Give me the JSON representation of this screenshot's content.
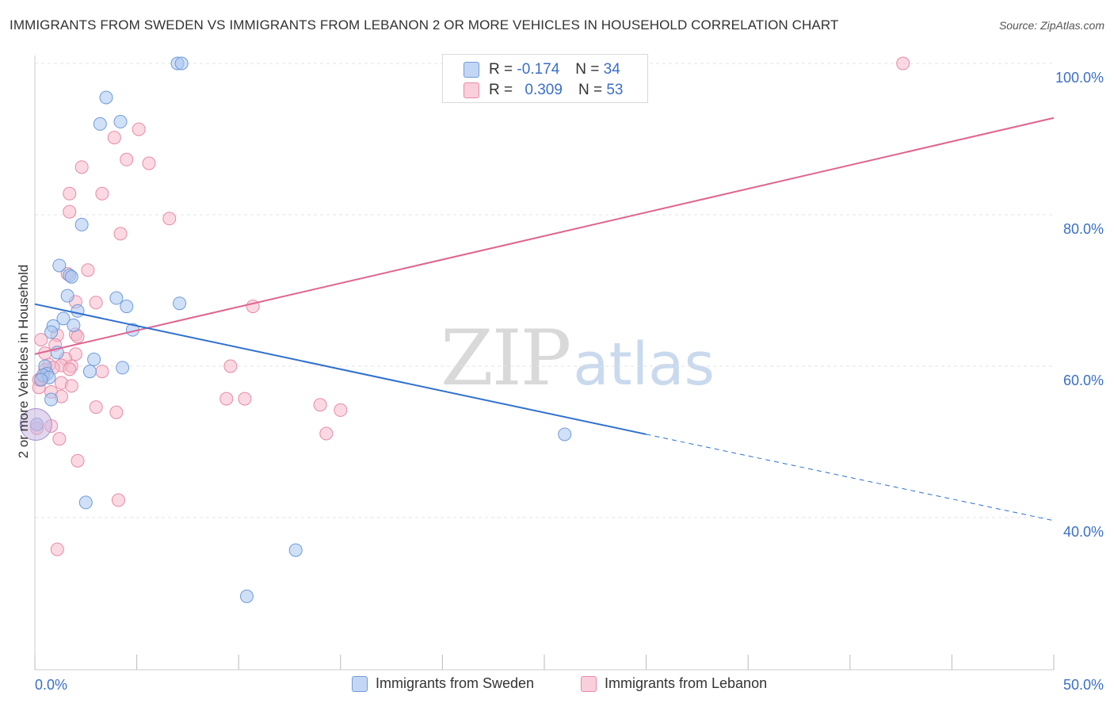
{
  "header": {
    "title": "IMMIGRANTS FROM SWEDEN VS IMMIGRANTS FROM LEBANON 2 OR MORE VEHICLES IN HOUSEHOLD CORRELATION CHART",
    "source": "Source: ZipAtlas.com"
  },
  "watermark": {
    "zip": "ZIP",
    "atlas": "atlas"
  },
  "legend_stats": {
    "sweden": {
      "r_label": "R =",
      "r_value": "-0.174",
      "n_label": "N =",
      "n_value": "34"
    },
    "lebanon": {
      "r_label": "R =",
      "r_value": "0.309",
      "n_label": "N =",
      "n_value": "53"
    }
  },
  "chart_data": {
    "type": "scatter",
    "title": "IMMIGRANTS FROM SWEDEN VS IMMIGRANTS FROM LEBANON 2 OR MORE VEHICLES IN HOUSEHOLD CORRELATION CHART",
    "xlabel": "",
    "ylabel": "2 or more Vehicles in Household",
    "xlim": [
      0,
      50
    ],
    "ylim": [
      20,
      102
    ],
    "x_tick_labels": [
      "0.0%",
      "50.0%"
    ],
    "y_ticks": [
      40,
      60,
      80,
      100
    ],
    "y_tick_labels": [
      "40.0%",
      "60.0%",
      "80.0%",
      "100.0%"
    ],
    "grid": true,
    "legend_position": "top-center",
    "colors": {
      "sweden_fill": "#a9c6f0",
      "sweden_stroke": "#6f9bd8",
      "sweden_line": "#2f6fcf",
      "lebanon_fill": "#f6b9cb",
      "lebanon_stroke": "#e88aa8",
      "lebanon_line": "#e06490",
      "axis_text": "#3a6fc8"
    },
    "series": [
      {
        "name": "Immigrants from Sweden",
        "r": -0.174,
        "n": 34,
        "trend": {
          "x0": 0,
          "y0": 68.2,
          "x1": 30,
          "y1": 51.0,
          "dashed_to_x": 50,
          "dashed_to_y": 39.6
        },
        "points": [
          [
            7.0,
            100.0
          ],
          [
            7.2,
            100.0
          ],
          [
            3.5,
            95.5
          ],
          [
            3.2,
            92.0
          ],
          [
            4.2,
            92.3
          ],
          [
            2.3,
            78.7
          ],
          [
            1.2,
            73.3
          ],
          [
            1.7,
            72.0
          ],
          [
            1.8,
            71.8
          ],
          [
            4.0,
            69.0
          ],
          [
            1.6,
            69.3
          ],
          [
            2.1,
            67.3
          ],
          [
            4.5,
            67.9
          ],
          [
            7.1,
            68.3
          ],
          [
            1.4,
            66.3
          ],
          [
            0.9,
            65.3
          ],
          [
            1.9,
            65.4
          ],
          [
            4.8,
            64.8
          ],
          [
            0.8,
            64.5
          ],
          [
            1.1,
            61.8
          ],
          [
            2.9,
            60.9
          ],
          [
            0.5,
            60.0
          ],
          [
            4.3,
            59.8
          ],
          [
            2.7,
            59.3
          ],
          [
            0.6,
            59.0
          ],
          [
            0.4,
            58.8
          ],
          [
            0.7,
            58.5
          ],
          [
            0.3,
            58.2
          ],
          [
            0.8,
            55.6
          ],
          [
            0.1,
            52.3
          ],
          [
            2.5,
            42.0
          ],
          [
            12.8,
            35.7
          ],
          [
            10.4,
            29.6
          ],
          [
            26.0,
            51.0
          ]
        ]
      },
      {
        "name": "Immigrants from Lebanon",
        "r": 0.309,
        "n": 53,
        "trend": {
          "x0": 0,
          "y0": 61.6,
          "x1": 50,
          "y1": 92.8
        },
        "points": [
          [
            42.6,
            100.0
          ],
          [
            5.1,
            91.3
          ],
          [
            3.9,
            90.2
          ],
          [
            4.5,
            87.3
          ],
          [
            5.6,
            86.8
          ],
          [
            2.3,
            86.3
          ],
          [
            1.7,
            82.8
          ],
          [
            3.3,
            82.8
          ],
          [
            1.7,
            80.4
          ],
          [
            6.6,
            79.5
          ],
          [
            4.2,
            77.5
          ],
          [
            2.6,
            72.7
          ],
          [
            1.6,
            72.2
          ],
          [
            3.0,
            68.4
          ],
          [
            2.0,
            68.5
          ],
          [
            10.7,
            67.9
          ],
          [
            1.1,
            64.1
          ],
          [
            2.0,
            64.2
          ],
          [
            2.1,
            63.9
          ],
          [
            0.3,
            63.5
          ],
          [
            1.0,
            62.8
          ],
          [
            0.5,
            61.7
          ],
          [
            2.0,
            61.6
          ],
          [
            1.5,
            61.0
          ],
          [
            0.7,
            60.2
          ],
          [
            1.3,
            60.1
          ],
          [
            1.8,
            60.0
          ],
          [
            1.7,
            59.6
          ],
          [
            0.9,
            59.8
          ],
          [
            0.5,
            59.5
          ],
          [
            3.3,
            59.3
          ],
          [
            0.4,
            58.5
          ],
          [
            0.2,
            58.2
          ],
          [
            1.3,
            57.8
          ],
          [
            1.8,
            57.4
          ],
          [
            0.2,
            57.2
          ],
          [
            0.8,
            56.6
          ],
          [
            1.3,
            56.0
          ],
          [
            9.6,
            60.0
          ],
          [
            9.4,
            55.7
          ],
          [
            10.3,
            55.7
          ],
          [
            3.0,
            54.6
          ],
          [
            4.0,
            53.9
          ],
          [
            14.0,
            54.9
          ],
          [
            15.0,
            54.2
          ],
          [
            0.8,
            52.1
          ],
          [
            0.1,
            51.8
          ],
          [
            14.3,
            51.1
          ],
          [
            1.2,
            50.4
          ],
          [
            2.1,
            47.5
          ],
          [
            4.1,
            42.3
          ],
          [
            1.1,
            35.8
          ],
          [
            0.3,
            58.3
          ]
        ]
      }
    ]
  },
  "legend": {
    "sweden_label": "Immigrants from Sweden",
    "lebanon_label": "Immigrants from Lebanon"
  }
}
